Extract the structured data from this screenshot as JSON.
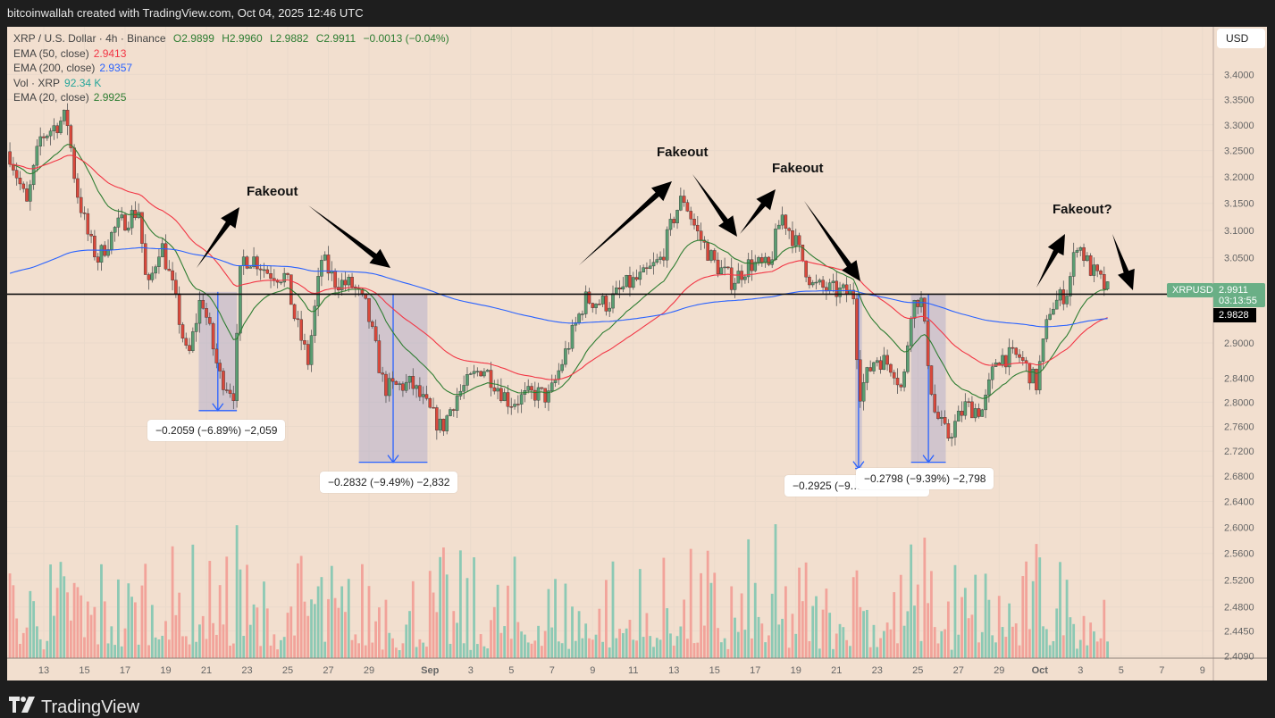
{
  "header": {
    "credit": "bitcoinwallah created with TradingView.com, Oct 04, 2025 12:46 UTC"
  },
  "legend": {
    "symbol": "XRP / U.S. Dollar · 4h · Binance",
    "open": "O2.9899",
    "high": "H2.9960",
    "low": "L2.9882",
    "close": "C2.9911",
    "change": "−0.0013 (−0.04%)",
    "ema50_label": "EMA (50, close)",
    "ema50_value": "2.9413",
    "ema200_label": "EMA (200, close)",
    "ema200_value": "2.9357",
    "vol_label": "Vol · XRP",
    "vol_value": "92.34 K",
    "ema20_label": "EMA (20, close)",
    "ema20_value": "2.9925"
  },
  "price_axis": {
    "currency": "USD",
    "symbol_tag": "XRPUSD",
    "last_price": "2.9911",
    "countdown": "03:13:55",
    "ema_tag": "2.9828"
  },
  "footer": {
    "brand": "TradingView",
    "logo_text": "17"
  },
  "colors": {
    "up": "#5a9e72",
    "down": "#d9483b",
    "ema20": "#2e7d32",
    "ema50": "#f23645",
    "ema200": "#2962ff",
    "vol_up": "#8cc9b4",
    "vol_down": "#f2a39a",
    "background": "#f2dfcf"
  },
  "annotations": {
    "fakeouts": [
      "Fakeout",
      "Fakeout",
      "Fakeout",
      "Fakeout?"
    ],
    "measures": [
      {
        "label": "−0.2059 (−6.89%) −2,059",
        "from": "2025-08-20T15:00",
        "to": "2025-08-22T12:00",
        "top": 2.989,
        "bottom": 2.786
      },
      {
        "label": "−0.2832 (−9.49%) −2,832",
        "from": "2025-08-28T12:00",
        "to": "2025-08-31T21:00",
        "top": 2.984,
        "bottom": 2.702
      },
      {
        "label": "−0.2925 (−9.…",
        "from": "2025-09-21T22:00",
        "to": "2025-09-22T06:00",
        "top": 2.984,
        "bottom": 2.692
      },
      {
        "label": "−0.2798 (−9.39%) −2,798",
        "from": "2025-09-24T16:00",
        "to": "2025-09-26T09:00",
        "top": 2.984,
        "bottom": 2.702
      }
    ],
    "support_level": 2.985
  },
  "chart_data": {
    "type": "candlestick",
    "title": "XRP / U.S. Dollar · 4h · Binance",
    "scale": "log",
    "ylim": [
      2.409,
      3.45
    ],
    "y_ticks": [
      "3.4000",
      "3.3500",
      "3.3000",
      "3.2500",
      "3.2000",
      "3.1500",
      "3.1000",
      "3.0500",
      "2.9000",
      "2.8400",
      "2.8000",
      "2.7600",
      "2.7200",
      "2.6800",
      "2.6400",
      "2.6000",
      "2.5600",
      "2.5200",
      "2.4800",
      "2.4450",
      "2.4090"
    ],
    "x_ticks": [
      {
        "label": "13",
        "date": "2025-08-13"
      },
      {
        "label": "15",
        "date": "2025-08-15"
      },
      {
        "label": "17",
        "date": "2025-08-17"
      },
      {
        "label": "19",
        "date": "2025-08-19"
      },
      {
        "label": "21",
        "date": "2025-08-21"
      },
      {
        "label": "23",
        "date": "2025-08-23"
      },
      {
        "label": "25",
        "date": "2025-08-25"
      },
      {
        "label": "27",
        "date": "2025-08-27"
      },
      {
        "label": "29",
        "date": "2025-08-29"
      },
      {
        "label": "Sep",
        "date": "2025-09-01"
      },
      {
        "label": "3",
        "date": "2025-09-03"
      },
      {
        "label": "5",
        "date": "2025-09-05"
      },
      {
        "label": "7",
        "date": "2025-09-07"
      },
      {
        "label": "9",
        "date": "2025-09-09"
      },
      {
        "label": "11",
        "date": "2025-09-11"
      },
      {
        "label": "13",
        "date": "2025-09-13"
      },
      {
        "label": "15",
        "date": "2025-09-15"
      },
      {
        "label": "17",
        "date": "2025-09-17"
      },
      {
        "label": "19",
        "date": "2025-09-19"
      },
      {
        "label": "21",
        "date": "2025-09-21"
      },
      {
        "label": "23",
        "date": "2025-09-23"
      },
      {
        "label": "25",
        "date": "2025-09-25"
      },
      {
        "label": "27",
        "date": "2025-09-27"
      },
      {
        "label": "29",
        "date": "2025-09-29"
      },
      {
        "label": "Oct",
        "date": "2025-10-01"
      },
      {
        "label": "3",
        "date": "2025-10-03"
      },
      {
        "label": "5",
        "date": "2025-10-05"
      },
      {
        "label": "7",
        "date": "2025-10-07"
      },
      {
        "label": "9",
        "date": "2025-10-09"
      }
    ],
    "price_path": [
      [
        "2025-08-11T07:00",
        3.248
      ],
      [
        "2025-08-12T04:00",
        3.146
      ],
      [
        "2025-08-12T20:00",
        3.274
      ],
      [
        "2025-08-14T03:00",
        3.317
      ],
      [
        "2025-08-14T14:00",
        3.18
      ],
      [
        "2025-08-15T06:00",
        3.08
      ],
      [
        "2025-08-15T16:00",
        3.048
      ],
      [
        "2025-08-16T13:00",
        3.105
      ],
      [
        "2025-08-17T16:00",
        3.138
      ],
      [
        "2025-08-18T02:00",
        2.984
      ],
      [
        "2025-08-18T18:00",
        3.08
      ],
      [
        "2025-08-19T10:00",
        2.984
      ],
      [
        "2025-08-20T02:00",
        2.868
      ],
      [
        "2025-08-20T18:00",
        2.984
      ],
      [
        "2025-08-21T15:00",
        2.845
      ],
      [
        "2025-08-22T09:00",
        2.815
      ],
      [
        "2025-08-22T17:00",
        3.048
      ],
      [
        "2025-08-23T09:00",
        3.048
      ],
      [
        "2025-08-24T01:00",
        3.024
      ],
      [
        "2025-08-24T22:00",
        3.016
      ],
      [
        "2025-08-25T08:00",
        2.945
      ],
      [
        "2025-08-26T00:00",
        2.868
      ],
      [
        "2025-08-26T16:00",
        3.048
      ],
      [
        "2025-08-27T08:00",
        3.008
      ],
      [
        "2025-08-28T05:00",
        3.0
      ],
      [
        "2025-08-28T21:00",
        2.96
      ],
      [
        "2025-08-29T18:00",
        2.823
      ],
      [
        "2025-08-31T02:00",
        2.83
      ],
      [
        "2025-08-31T23:00",
        2.786
      ],
      [
        "2025-09-01T14:00",
        2.756
      ],
      [
        "2025-09-02T06:00",
        2.808
      ],
      [
        "2025-09-03T14:00",
        2.86
      ],
      [
        "2025-09-04T22:00",
        2.8
      ],
      [
        "2025-09-06T05:00",
        2.815
      ],
      [
        "2025-09-06T21:00",
        2.808
      ],
      [
        "2025-09-07T18:00",
        2.891
      ],
      [
        "2025-09-08T15:00",
        2.976
      ],
      [
        "2025-09-09T18:00",
        2.968
      ],
      [
        "2025-09-10T15:00",
        3.0
      ],
      [
        "2025-09-11T12:00",
        3.016
      ],
      [
        "2025-09-12T09:00",
        3.048
      ],
      [
        "2025-09-13T01:00",
        3.13
      ],
      [
        "2025-09-13T11:00",
        3.163
      ],
      [
        "2025-09-14T03:00",
        3.097
      ],
      [
        "2025-09-15T00:00",
        3.04
      ],
      [
        "2025-09-15T21:00",
        3.008
      ],
      [
        "2025-09-16T18:00",
        3.04
      ],
      [
        "2025-09-17T16:00",
        3.032
      ],
      [
        "2025-09-18T07:00",
        3.13
      ],
      [
        "2025-09-18T23:00",
        3.08
      ],
      [
        "2025-09-19T20:00",
        3.0
      ],
      [
        "2025-09-20T17:00",
        2.992
      ],
      [
        "2025-09-21T20:00",
        2.984
      ],
      [
        "2025-09-22T03:00",
        2.815
      ],
      [
        "2025-09-22T22:00",
        2.876
      ],
      [
        "2025-09-23T19:00",
        2.86
      ],
      [
        "2025-09-24T06:00",
        2.815
      ],
      [
        "2025-09-24T16:00",
        2.96
      ],
      [
        "2025-09-25T03:00",
        2.984
      ],
      [
        "2025-09-25T19:00",
        2.786
      ],
      [
        "2025-09-26T11:00",
        2.742
      ],
      [
        "2025-09-27T08:00",
        2.793
      ],
      [
        "2025-09-28T05:00",
        2.786
      ],
      [
        "2025-09-28T21:00",
        2.876
      ],
      [
        "2025-09-30T00:00",
        2.876
      ],
      [
        "2025-09-30T20:00",
        2.83
      ],
      [
        "2025-10-01T12:00",
        2.96
      ],
      [
        "2025-10-02T09:00",
        2.992
      ],
      [
        "2025-10-02T20:00",
        3.08
      ],
      [
        "2025-10-03T11:00",
        3.032
      ],
      [
        "2025-10-04T08:00",
        2.991
      ]
    ],
    "last_volume": "92.34 K"
  }
}
